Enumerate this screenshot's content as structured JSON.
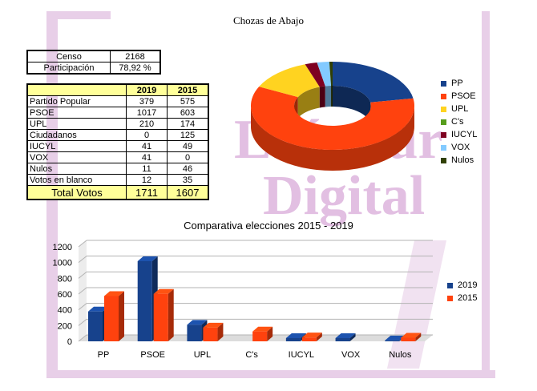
{
  "page_title": "Chozas de Abajo",
  "watermark": {
    "line1": "LeónSur",
    "line2": "Digital"
  },
  "census": [
    {
      "label": "Censo",
      "value": "2168"
    },
    {
      "label": "Participación",
      "value": "78,92 %"
    }
  ],
  "results_table": {
    "headers": [
      "",
      "2019",
      "2015"
    ],
    "rows": [
      {
        "party": "Partido Popular",
        "v2019": "379",
        "v2015": "575"
      },
      {
        "party": "PSOE",
        "v2019": "1017",
        "v2015": "603"
      },
      {
        "party": "UPL",
        "v2019": "210",
        "v2015": "174"
      },
      {
        "party": "Ciudadanos",
        "v2019": "0",
        "v2015": "125"
      },
      {
        "party": "IUCYL",
        "v2019": "41",
        "v2015": "49"
      },
      {
        "party": "VOX",
        "v2019": "41",
        "v2015": "0"
      },
      {
        "party": "Nulos",
        "v2019": "11",
        "v2015": "46"
      },
      {
        "party": "Votos en blanco",
        "v2019": "12",
        "v2015": "35"
      }
    ],
    "total": {
      "label": "Total Votos",
      "v2019": "1711",
      "v2015": "1607"
    }
  },
  "chart_data": [
    {
      "type": "pie",
      "labels": [
        "PP",
        "PSOE",
        "UPL",
        "C's",
        "IUCYL",
        "VOX",
        "Nulos"
      ],
      "values": [
        379,
        1017,
        210,
        0,
        41,
        41,
        11
      ],
      "colors": [
        "#17428c",
        "#ff420e",
        "#ffd320",
        "#579d1c",
        "#7e0021",
        "#83caff",
        "#314004"
      ],
      "legend": "right"
    },
    {
      "type": "bar",
      "title": "Comparativa elecciones 2015 - 2019",
      "categories": [
        "PP",
        "PSOE",
        "UPL",
        "C's",
        "IUCYL",
        "VOX",
        "Nulos"
      ],
      "series": [
        {
          "name": "2019",
          "values": [
            379,
            1017,
            210,
            0,
            41,
            41,
            11
          ],
          "color": "#17428c"
        },
        {
          "name": "2015",
          "values": [
            575,
            603,
            174,
            125,
            49,
            0,
            46
          ],
          "color": "#ff420e"
        }
      ],
      "ylim": [
        0,
        1200
      ],
      "yticks": [
        0,
        200,
        400,
        600,
        800,
        1000,
        1200
      ],
      "grid": true,
      "legend": "right"
    }
  ]
}
